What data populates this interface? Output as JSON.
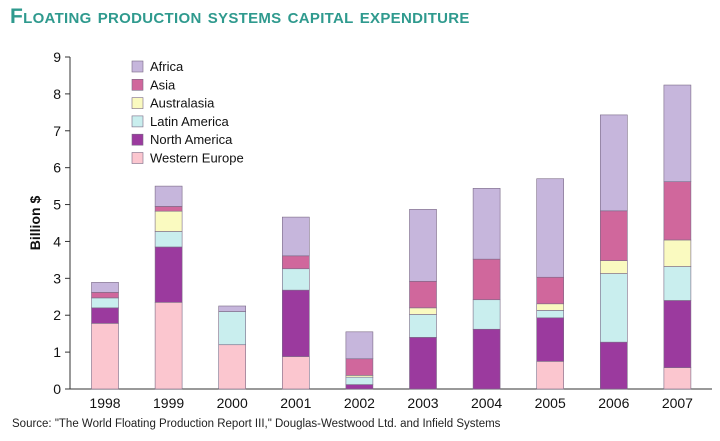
{
  "title": "Floating production systems capital expenditure",
  "source": "Source: \"The World Floating Production Report III,\" Douglas-Westwood Ltd. and Infield Systems",
  "chart_data": {
    "type": "bar",
    "stacked": true,
    "title": "Floating production systems capital expenditure",
    "xlabel": "",
    "ylabel": "Billion $",
    "ylim": [
      0,
      9
    ],
    "yticks": [
      "0",
      "1",
      "2",
      "3",
      "4",
      "5",
      "6",
      "7",
      "8",
      "9"
    ],
    "grid": false,
    "legend_position": "top-left",
    "categories": [
      "1998",
      "1999",
      "2000",
      "2001",
      "2002",
      "2003",
      "2004",
      "2005",
      "2006",
      "2007"
    ],
    "series": [
      {
        "name": "Western Europe",
        "color": "#fbc6cf",
        "values": [
          1.78,
          2.35,
          1.2,
          0.88,
          0.0,
          0.0,
          0.0,
          0.75,
          0.0,
          0.58
        ]
      },
      {
        "name": "North America",
        "color": "#9b3a9e",
        "values": [
          0.42,
          1.5,
          0.0,
          1.8,
          0.12,
          1.4,
          1.62,
          1.18,
          1.27,
          1.82
        ]
      },
      {
        "name": "Latin America",
        "color": "#c9eeee",
        "values": [
          0.27,
          0.42,
          0.9,
          0.58,
          0.2,
          0.62,
          0.8,
          0.2,
          1.86,
          0.92
        ]
      },
      {
        "name": "Australasia",
        "color": "#fafac0",
        "values": [
          0.0,
          0.55,
          0.0,
          0.0,
          0.05,
          0.18,
          0.0,
          0.18,
          0.35,
          0.72
        ]
      },
      {
        "name": "Asia",
        "color": "#d0679c",
        "values": [
          0.15,
          0.13,
          0.0,
          0.35,
          0.45,
          0.72,
          1.1,
          0.72,
          1.35,
          1.58
        ]
      },
      {
        "name": "Africa",
        "color": "#c6b6dc",
        "values": [
          0.27,
          0.55,
          0.15,
          1.05,
          0.73,
          1.95,
          1.92,
          2.67,
          2.6,
          2.62
        ]
      }
    ],
    "legend_order": [
      "Africa",
      "Asia",
      "Australasia",
      "Latin America",
      "North America",
      "Western Europe"
    ]
  }
}
